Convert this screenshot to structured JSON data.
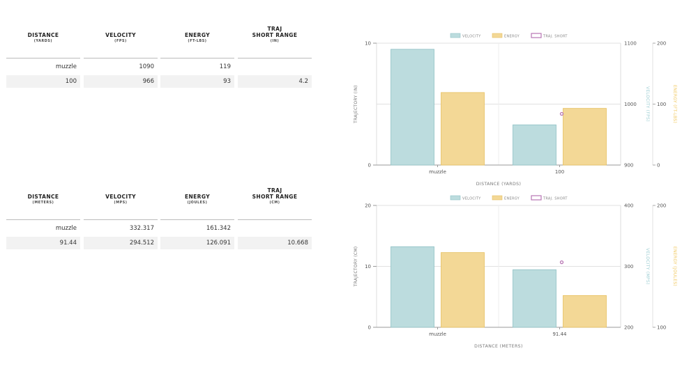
{
  "tables": [
    {
      "headers": [
        {
          "main": [
            "DISTANCE"
          ],
          "unit": "(YARDS)"
        },
        {
          "main": [
            "VELOCITY"
          ],
          "unit": "(FPS)"
        },
        {
          "main": [
            "ENERGY"
          ],
          "unit": "(FT-LBS)"
        },
        {
          "main": [
            "TRAJ",
            "SHORT RANGE"
          ],
          "unit": "(IN)"
        }
      ],
      "rows": [
        [
          "muzzle",
          "1090",
          "119",
          ""
        ],
        [
          "100",
          "966",
          "93",
          "4.2"
        ]
      ]
    },
    {
      "headers": [
        {
          "main": [
            "DISTANCE"
          ],
          "unit": "(METERS)"
        },
        {
          "main": [
            "VELOCITY"
          ],
          "unit": "(MPS)"
        },
        {
          "main": [
            "ENERGY"
          ],
          "unit": "(JOULES)"
        },
        {
          "main": [
            "TRAJ",
            "SHORT RANGE"
          ],
          "unit": "(CM)"
        }
      ],
      "rows": [
        [
          "muzzle",
          "332.317",
          "161.342",
          ""
        ],
        [
          "91.44",
          "294.512",
          "126.091",
          "10.668"
        ]
      ]
    }
  ],
  "colors": {
    "velocity": "#bcdcde",
    "velocity_stroke": "#8fc1c5",
    "energy": "#f3d896",
    "energy_stroke": "#e6c060",
    "traj": "#b876b4",
    "grid": "#e1e1e1",
    "axis_text": "#555555",
    "velocity_axis_text": "#9ccdd2",
    "energy_axis_text": "#f0c75c"
  },
  "chart_data": [
    {
      "type": "bar",
      "legend": [
        "VELOCITY",
        "ENERGY",
        "TRAJ. SHORT"
      ],
      "categories": [
        "muzzle",
        "100"
      ],
      "series": [
        {
          "name": "VELOCITY",
          "values": [
            1090,
            966
          ],
          "axis": "velocity"
        },
        {
          "name": "ENERGY",
          "values": [
            119,
            93
          ],
          "axis": "energy"
        },
        {
          "name": "TRAJ. SHORT",
          "values": [
            null,
            4.2
          ],
          "axis": "traj",
          "kind": "point"
        }
      ],
      "xlabel": "DISTANCE (YARDS)",
      "y_traj": {
        "label": "TRAJECTORY (IN)",
        "range": [
          0,
          10
        ],
        "ticks": [
          "0",
          "10"
        ]
      },
      "y_velocity": {
        "label": "VELOCITY (FPS)",
        "range": [
          900,
          1100
        ],
        "ticks": [
          "900",
          "1000",
          "1100"
        ]
      },
      "y_energy": {
        "label": "ENERGY (FT-LBS)",
        "range": [
          0,
          200
        ],
        "ticks": [
          "0",
          "100",
          "200"
        ]
      }
    },
    {
      "type": "bar",
      "legend": [
        "VELOCITY",
        "ENERGY",
        "TRAJ. SHORT"
      ],
      "categories": [
        "muzzle",
        "91.44"
      ],
      "series": [
        {
          "name": "VELOCITY",
          "values": [
            332.317,
            294.512
          ],
          "axis": "velocity"
        },
        {
          "name": "ENERGY",
          "values": [
            161.342,
            126.091
          ],
          "axis": "energy"
        },
        {
          "name": "TRAJ. SHORT",
          "values": [
            null,
            10.668
          ],
          "axis": "traj",
          "kind": "point"
        }
      ],
      "xlabel": "DISTANCE (METERS)",
      "y_traj": {
        "label": "TRAJECTORY (CM)",
        "range": [
          0,
          20
        ],
        "ticks": [
          "0",
          "10",
          "20"
        ]
      },
      "y_velocity": {
        "label": "VELOCITY (MPS)",
        "range": [
          200,
          400
        ],
        "ticks": [
          "200",
          "300",
          "400"
        ]
      },
      "y_energy": {
        "label": "ENERGY (JOULES)",
        "range": [
          100,
          200
        ],
        "ticks": [
          "100",
          "200"
        ]
      }
    }
  ]
}
